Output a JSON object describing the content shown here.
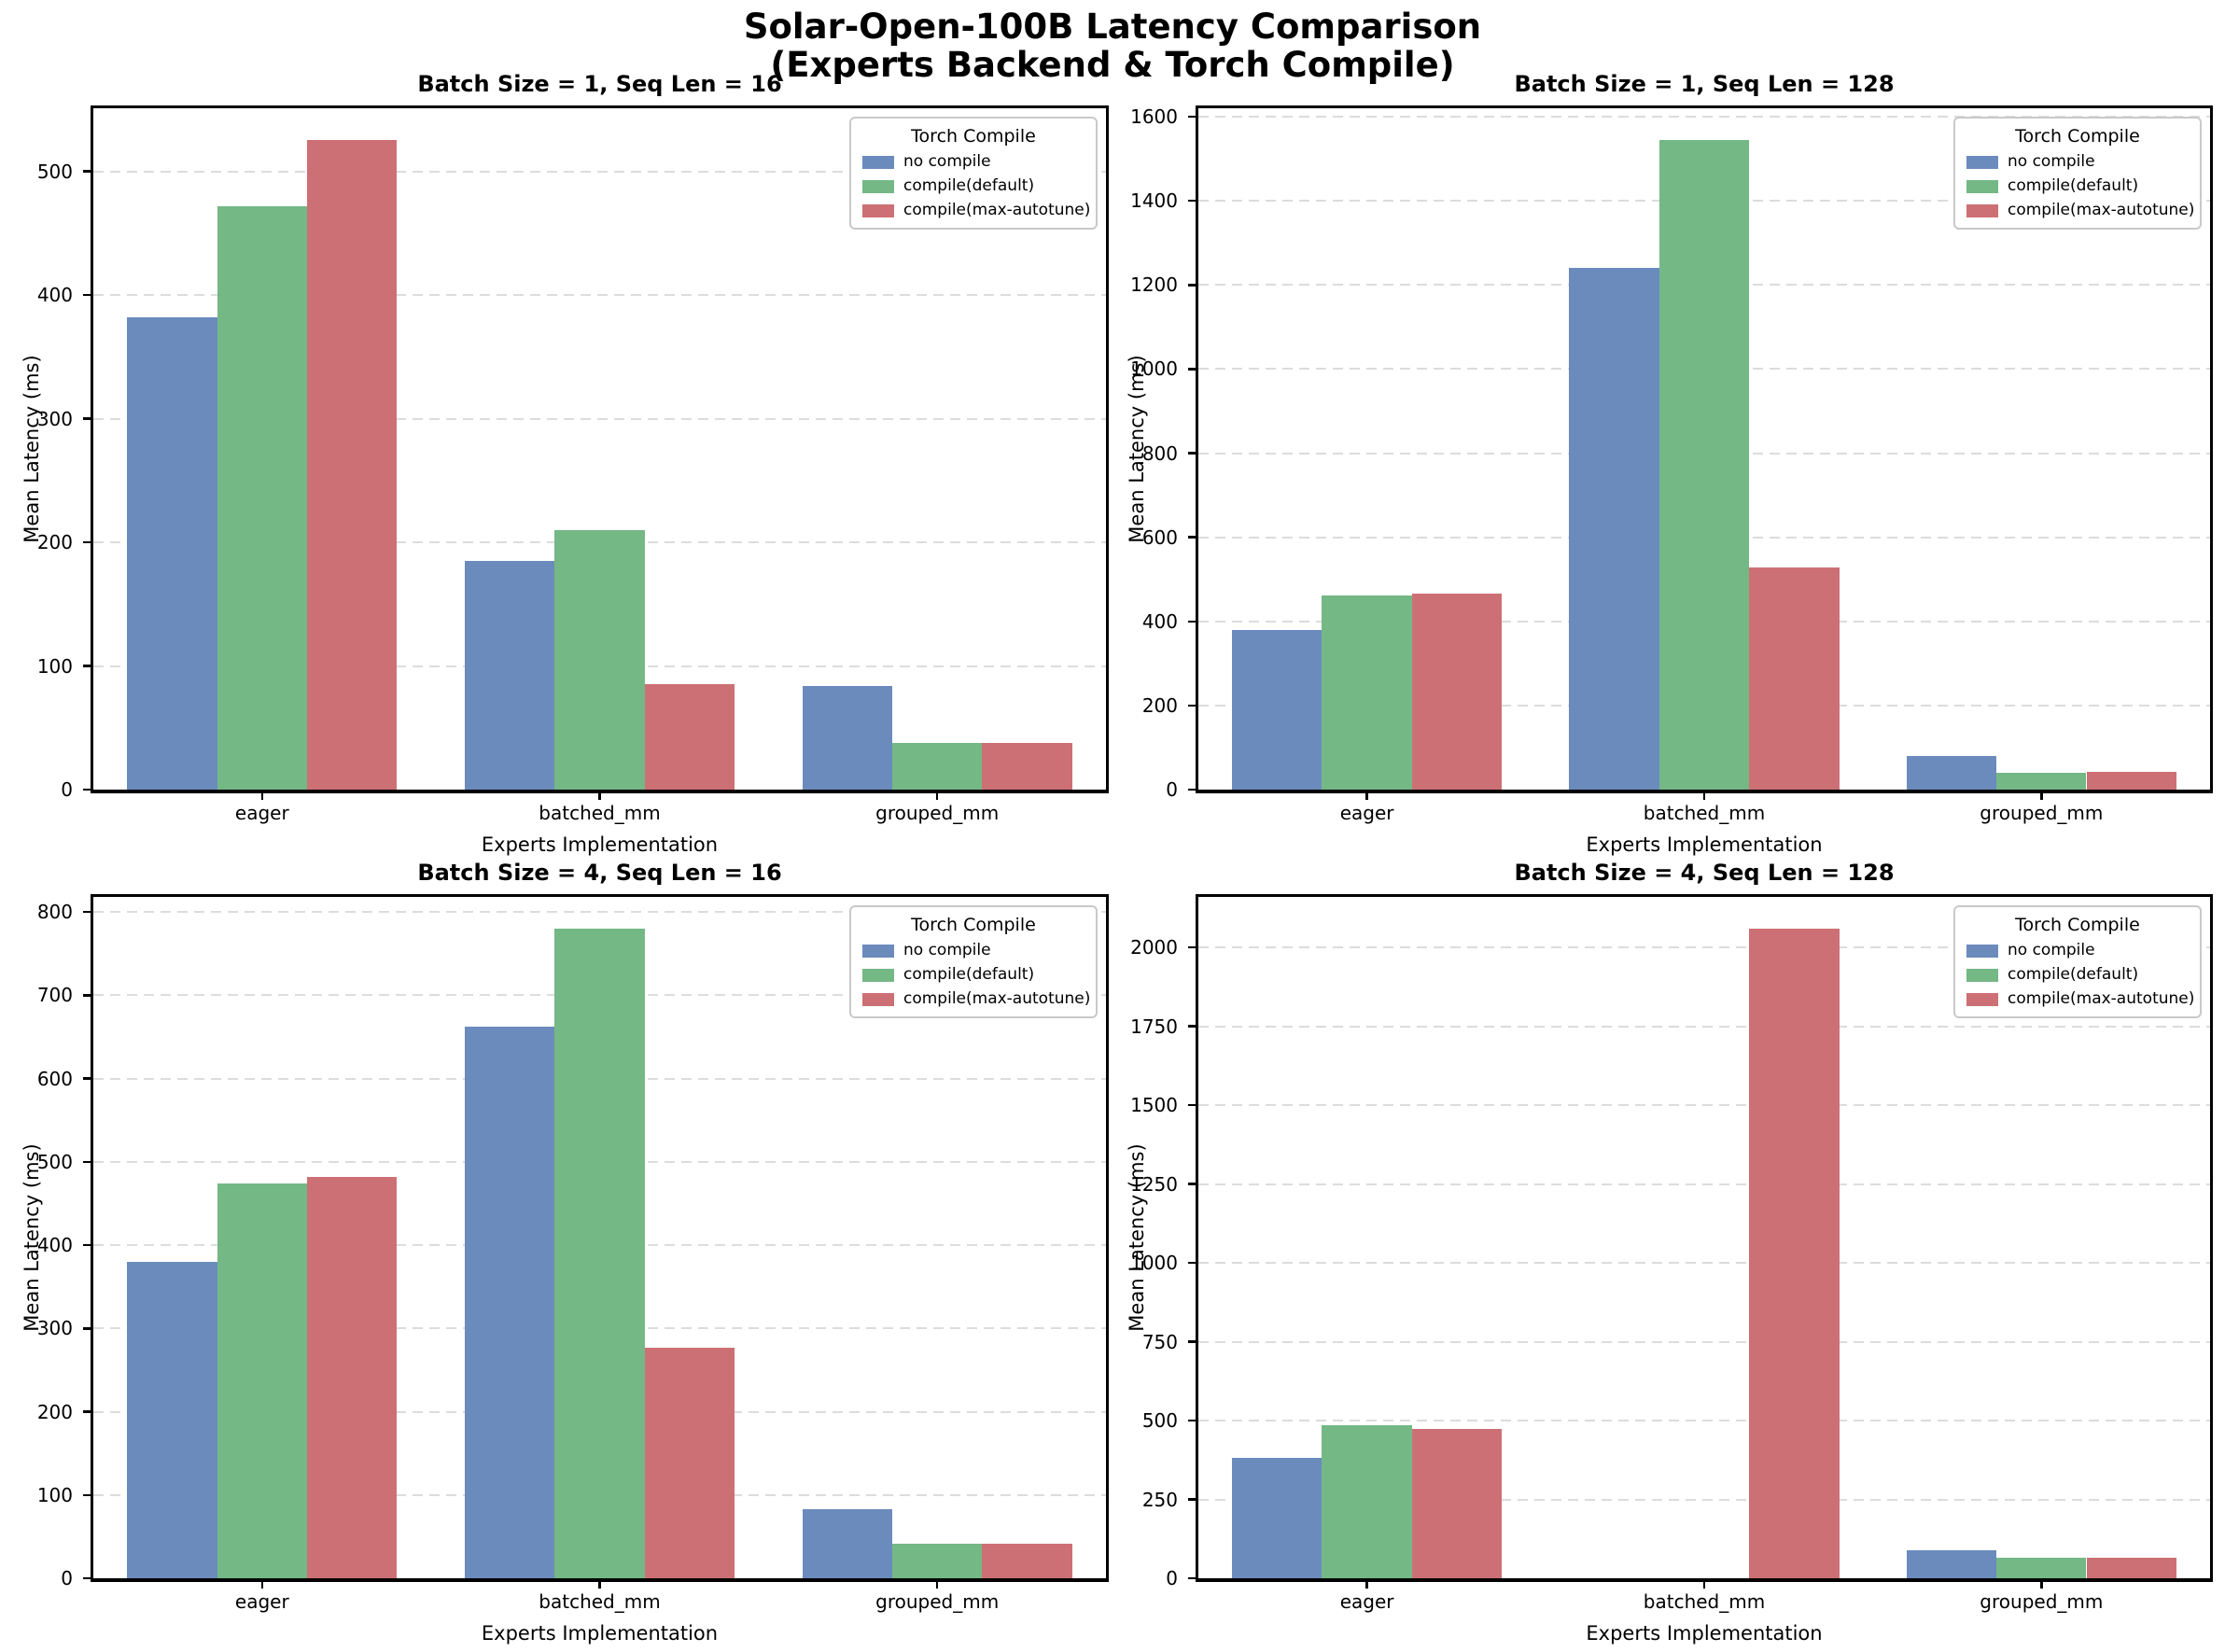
{
  "figure": {
    "suptitle_line1": "Solar-Open-100B Latency Comparison",
    "suptitle_line2": "(Experts Backend & Torch Compile)"
  },
  "style": {
    "series_colors": [
      "#6B8BBD",
      "#74B886",
      "#CD7075"
    ],
    "grid_color": "#DCDCDC",
    "spine_color": "#000000",
    "background": "#FFFFFF",
    "text_color": "#000000"
  },
  "legend": {
    "title": "Torch Compile",
    "position": "upper right",
    "entries": [
      {
        "label": "no compile",
        "color": "#6B8BBD"
      },
      {
        "label": "compile(default)",
        "color": "#74B886"
      },
      {
        "label": "compile(max-autotune)",
        "color": "#CD7075"
      }
    ]
  },
  "chart_data": [
    {
      "type": "bar",
      "title": "Batch Size = 1, Seq Len = 16",
      "xlabel": "Experts Implementation",
      "ylabel": "Mean Latency (ms)",
      "categories": [
        "eager",
        "batched_mm",
        "grouped_mm"
      ],
      "series": [
        {
          "name": "no compile",
          "values": [
            382,
            185,
            84
          ]
        },
        {
          "name": "compile(default)",
          "values": [
            472,
            210,
            38
          ]
        },
        {
          "name": "compile(max-autotune)",
          "values": [
            525,
            85,
            38
          ]
        }
      ],
      "yticks": [
        0,
        100,
        200,
        300,
        400,
        500
      ],
      "ylim": [
        0,
        551
      ],
      "grid": true,
      "legend_position": "upper right"
    },
    {
      "type": "bar",
      "title": "Batch Size = 1, Seq Len = 128",
      "xlabel": "Experts Implementation",
      "ylabel": "Mean Latency (ms)",
      "categories": [
        "eager",
        "batched_mm",
        "grouped_mm"
      ],
      "series": [
        {
          "name": "no compile",
          "values": [
            380,
            1240,
            80
          ]
        },
        {
          "name": "compile(default)",
          "values": [
            462,
            1545,
            40
          ]
        },
        {
          "name": "compile(max-autotune)",
          "values": [
            466,
            528,
            43
          ]
        }
      ],
      "yticks": [
        0,
        200,
        400,
        600,
        800,
        1000,
        1200,
        1400,
        1600
      ],
      "ylim": [
        0,
        1620
      ],
      "grid": true,
      "legend_position": "upper right"
    },
    {
      "type": "bar",
      "title": "Batch Size = 4, Seq Len = 16",
      "xlabel": "Experts Implementation",
      "ylabel": "Mean Latency (ms)",
      "categories": [
        "eager",
        "batched_mm",
        "grouped_mm"
      ],
      "series": [
        {
          "name": "no compile",
          "values": [
            380,
            662,
            83
          ]
        },
        {
          "name": "compile(default)",
          "values": [
            474,
            780,
            41
          ]
        },
        {
          "name": "compile(max-autotune)",
          "values": [
            482,
            277,
            41
          ]
        }
      ],
      "yticks": [
        0,
        100,
        200,
        300,
        400,
        500,
        600,
        700,
        800
      ],
      "ylim": [
        0,
        818
      ],
      "grid": true,
      "legend_position": "upper right"
    },
    {
      "type": "bar",
      "title": "Batch Size = 4, Seq Len = 128",
      "xlabel": "Experts Implementation",
      "ylabel": "Mean Latency (ms)",
      "categories": [
        "eager",
        "batched_mm",
        "grouped_mm"
      ],
      "series": [
        {
          "name": "no compile",
          "values": [
            382,
            null,
            89
          ]
        },
        {
          "name": "compile(default)",
          "values": [
            484,
            null,
            64
          ]
        },
        {
          "name": "compile(max-autotune)",
          "values": [
            474,
            2060,
            64
          ]
        }
      ],
      "yticks": [
        0,
        250,
        500,
        750,
        1000,
        1250,
        1500,
        1750,
        2000
      ],
      "ylim": [
        0,
        2160
      ],
      "grid": true,
      "legend_position": "upper right"
    }
  ]
}
